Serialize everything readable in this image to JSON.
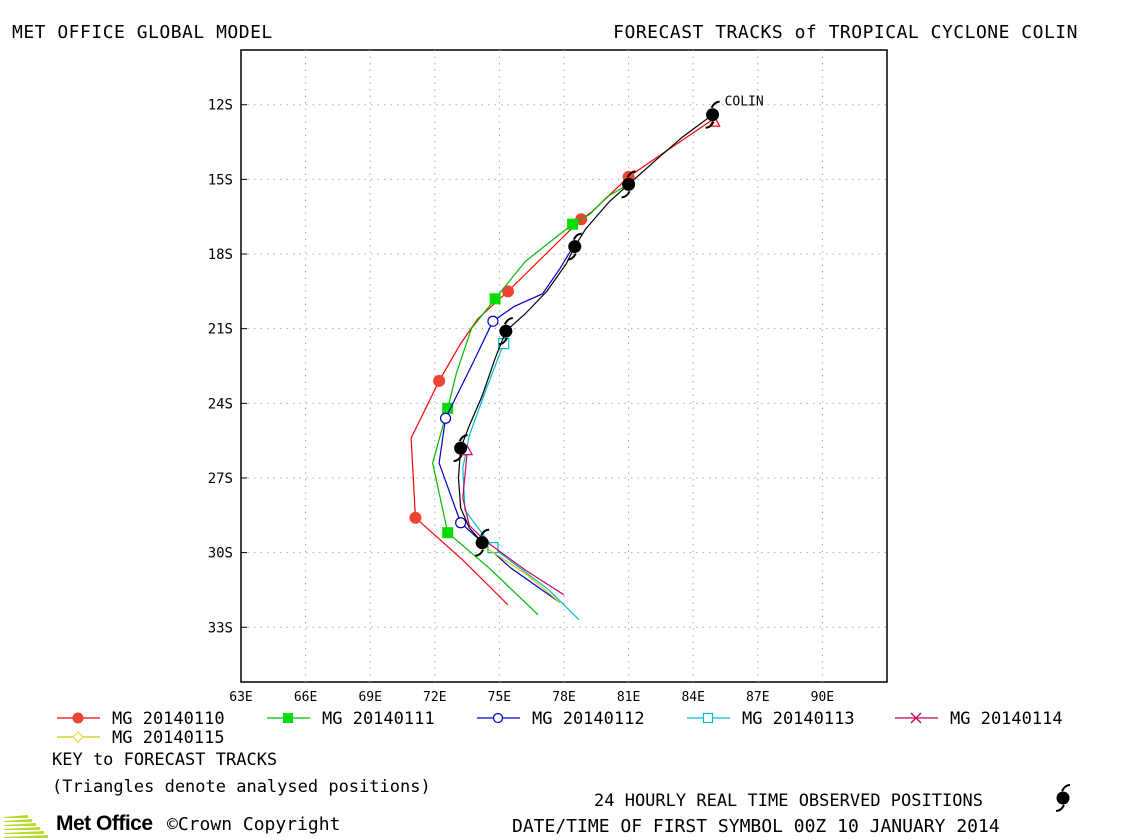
{
  "header": {
    "left": "MET OFFICE GLOBAL MODEL",
    "right": "FORECAST TRACKS of TROPICAL CYCLONE COLIN"
  },
  "chart_data": {
    "type": "line",
    "title": "FORECAST TRACKS of TROPICAL CYCLONE COLIN",
    "xlabel": "",
    "ylabel": "",
    "xlim": [
      63,
      93
    ],
    "ylim": [
      -35.2,
      -9.8
    ],
    "x_ticks": [
      "63E",
      "66E",
      "69E",
      "72E",
      "75E",
      "78E",
      "81E",
      "84E",
      "87E",
      "90E"
    ],
    "x_tick_values": [
      63,
      66,
      69,
      72,
      75,
      78,
      81,
      84,
      87,
      90
    ],
    "y_ticks": [
      "12S",
      "15S",
      "18S",
      "21S",
      "24S",
      "27S",
      "30S",
      "33S"
    ],
    "y_tick_values": [
      -12,
      -15,
      -18,
      -21,
      -24,
      -27,
      -30,
      -33
    ],
    "grid": true,
    "storm_label": "COLIN",
    "observed": {
      "name": "24 HOURLY REAL TIME OBSERVED POSITIONS",
      "color": "#000000",
      "points": [
        [
          84.9,
          -12.4
        ],
        [
          81.0,
          -15.2
        ],
        [
          78.5,
          -17.7
        ],
        [
          75.3,
          -21.1
        ],
        [
          73.2,
          -25.8
        ],
        [
          74.2,
          -29.6
        ]
      ],
      "path": [
        [
          84.9,
          -12.4
        ],
        [
          83.5,
          -13.3
        ],
        [
          82.3,
          -14.2
        ],
        [
          81.0,
          -15.2
        ],
        [
          80.1,
          -15.9
        ],
        [
          79.0,
          -17.0
        ],
        [
          78.5,
          -17.7
        ],
        [
          78.1,
          -18.4
        ],
        [
          77.2,
          -19.5
        ],
        [
          76.2,
          -20.4
        ],
        [
          75.3,
          -21.1
        ],
        [
          74.8,
          -22.2
        ],
        [
          74.2,
          -23.7
        ],
        [
          73.6,
          -24.9
        ],
        [
          73.2,
          -25.8
        ],
        [
          73.1,
          -27.0
        ],
        [
          73.2,
          -28.2
        ],
        [
          73.6,
          -29.0
        ],
        [
          74.2,
          -29.6
        ]
      ]
    },
    "series": [
      {
        "name": "MG 20140110",
        "color": "#ff0000",
        "marker": "filled-circle",
        "marker_color": "#ee4433",
        "points": [
          [
            84.9,
            -12.6
          ],
          [
            82.0,
            -14.3
          ],
          [
            81.0,
            -14.9
          ],
          [
            79.3,
            -16.3
          ],
          [
            78.8,
            -16.6
          ],
          [
            76.8,
            -18.3
          ],
          [
            75.4,
            -19.5
          ],
          [
            74.0,
            -20.6
          ],
          [
            73.2,
            -21.6
          ],
          [
            72.2,
            -23.1
          ],
          [
            70.9,
            -25.4
          ],
          [
            71.1,
            -28.6
          ],
          [
            73.3,
            -30.3
          ],
          [
            75.4,
            -32.1
          ]
        ],
        "markers": [
          [
            81.0,
            -14.9
          ],
          [
            78.8,
            -16.6
          ],
          [
            75.4,
            -19.5
          ],
          [
            72.2,
            -23.1
          ],
          [
            71.1,
            -28.6
          ]
        ]
      },
      {
        "name": "MG 20140111",
        "color": "#00bb00",
        "marker": "filled-square",
        "marker_color": "#00dd00",
        "points": [
          [
            81.0,
            -15.2
          ],
          [
            80.0,
            -15.7
          ],
          [
            79.2,
            -16.4
          ],
          [
            78.4,
            -16.8
          ],
          [
            76.2,
            -18.3
          ],
          [
            74.8,
            -19.8
          ],
          [
            73.7,
            -21.0
          ],
          [
            73.0,
            -22.8
          ],
          [
            72.6,
            -24.2
          ],
          [
            71.9,
            -26.4
          ],
          [
            72.6,
            -29.2
          ],
          [
            74.5,
            -30.6
          ],
          [
            76.8,
            -32.5
          ]
        ],
        "markers": [
          [
            78.4,
            -16.8
          ],
          [
            74.8,
            -19.8
          ],
          [
            72.6,
            -24.2
          ],
          [
            72.6,
            -29.2
          ]
        ]
      },
      {
        "name": "MG 20140112",
        "color": "#0000cc",
        "marker": "open-circle",
        "marker_color": "#0000cc",
        "points": [
          [
            78.5,
            -17.6
          ],
          [
            77.8,
            -18.6
          ],
          [
            77.0,
            -19.6
          ],
          [
            75.7,
            -20.1
          ],
          [
            74.7,
            -20.7
          ],
          [
            73.7,
            -22.5
          ],
          [
            72.5,
            -24.6
          ],
          [
            72.2,
            -26.4
          ],
          [
            73.2,
            -28.8
          ],
          [
            75.5,
            -30.6
          ],
          [
            77.8,
            -32.0
          ]
        ],
        "markers": [
          [
            74.7,
            -20.7
          ],
          [
            72.5,
            -24.6
          ],
          [
            73.2,
            -28.8
          ]
        ]
      },
      {
        "name": "MG 20140113",
        "color": "#00bbcc",
        "marker": "open-square",
        "marker_color": "#00bbcc",
        "points": [
          [
            75.3,
            -21.2
          ],
          [
            75.2,
            -21.6
          ],
          [
            74.4,
            -23.4
          ],
          [
            73.6,
            -25.3
          ],
          [
            73.3,
            -26.6
          ],
          [
            73.4,
            -28.3
          ],
          [
            74.7,
            -29.8
          ],
          [
            77.3,
            -31.5
          ],
          [
            78.7,
            -32.7
          ]
        ],
        "markers": [
          [
            75.2,
            -21.6
          ],
          [
            74.7,
            -29.8
          ]
        ]
      },
      {
        "name": "MG 20140114",
        "color": "#cc0066",
        "marker": "cross",
        "marker_color": "#cc0066",
        "points": [
          [
            73.2,
            -25.8
          ],
          [
            73.5,
            -26.0
          ],
          [
            73.3,
            -27.8
          ],
          [
            73.6,
            -28.9
          ],
          [
            74.3,
            -29.5
          ],
          [
            76.2,
            -30.7
          ],
          [
            78.0,
            -31.7
          ]
        ],
        "markers": []
      },
      {
        "name": "MG 20140115",
        "color": "#cccc00",
        "marker": "open-diamond",
        "marker_color": "#dddd33",
        "points": [
          [
            74.2,
            -29.6
          ],
          [
            74.2,
            -29.7
          ],
          [
            76.3,
            -30.9
          ],
          [
            77.8,
            -32.0
          ]
        ],
        "markers": [
          [
            74.2,
            -29.7
          ]
        ]
      }
    ],
    "analysed": [
      {
        "series": "MG 20140110",
        "point": [
          85.0,
          -12.7
        ]
      },
      {
        "series": "MG 20140114",
        "point": [
          73.5,
          -25.9
        ]
      }
    ]
  },
  "legend": {
    "entries": [
      "MG 20140110",
      "MG 20140111",
      "MG 20140112",
      "MG 20140113",
      "MG 20140114",
      "MG 20140115"
    ]
  },
  "notes": {
    "key": "KEY to FORECAST TRACKS",
    "triangles": "(Triangles denote analysed positions)",
    "observed": "24 HOURLY REAL TIME OBSERVED POSITIONS",
    "datetime": "DATE/TIME OF FIRST SYMBOL 00Z 10 JANUARY 2014"
  },
  "branding": {
    "org": "Met Office",
    "copyright": "Crown Copyright",
    "logo_color": "#b5dc2b"
  }
}
